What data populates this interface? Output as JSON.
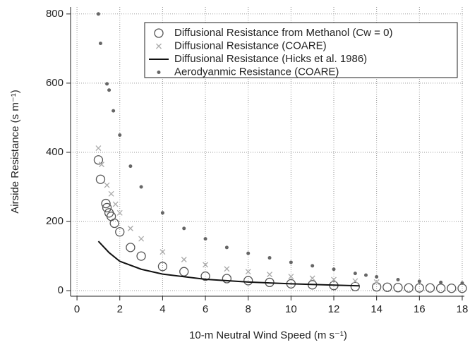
{
  "chart_data": {
    "type": "scatter",
    "xlabel": "10-m Neutral Wind Speed (m s⁻¹)",
    "ylabel": "Airside Resistance (s m⁻¹)",
    "xlim": [
      -0.3,
      18.1
    ],
    "ylim": [
      -16,
      820
    ],
    "xticks": [
      0,
      2,
      4,
      6,
      8,
      10,
      12,
      14,
      16,
      18
    ],
    "yticks": [
      0,
      200,
      400,
      600,
      800
    ],
    "grid": true,
    "legend": "upper right",
    "series": [
      {
        "name": "Diffusional Resistance from Methanol (Cw = 0)",
        "color": "#555555",
        "marker": "circle",
        "x": [
          1.0,
          1.1,
          1.35,
          1.4,
          1.5,
          1.6,
          1.75,
          2,
          2.5,
          3,
          4,
          5,
          6,
          7,
          8,
          9,
          10,
          11,
          12,
          13,
          14,
          14.5,
          15,
          15.5,
          16,
          16.5,
          17,
          17.5,
          18
        ],
        "values": [
          378,
          322,
          252,
          240,
          225,
          215,
          195,
          170,
          125,
          100,
          70,
          55,
          42,
          35,
          29,
          24,
          20,
          17,
          15,
          12,
          11,
          10,
          9,
          8,
          8,
          8,
          7,
          7,
          7
        ]
      },
      {
        "name": "Diffusional Resistance (COARE)",
        "color": "#aaaaaa",
        "marker": "x",
        "x": [
          1.0,
          1.15,
          1.4,
          1.6,
          1.8,
          2,
          2.5,
          3,
          4,
          5,
          6,
          7,
          8,
          9,
          10,
          11,
          12,
          13,
          14
        ],
        "values": [
          412,
          365,
          305,
          280,
          250,
          225,
          180,
          150,
          112,
          90,
          75,
          63,
          55,
          47,
          41,
          36,
          32,
          28,
          25
        ]
      },
      {
        "name": "Diffusional Resistance (Hicks et al. 1986)",
        "color": "#111111",
        "marker": "line",
        "x": [
          1.0,
          1.5,
          2,
          3,
          4,
          6,
          8,
          10,
          12,
          13.2
        ],
        "values": [
          143,
          110,
          85,
          62,
          48,
          33,
          25,
          20,
          16,
          14
        ]
      },
      {
        "name": "Aerodyanmic Resistance (COARE)",
        "color": "#666666",
        "marker": "dot",
        "x": [
          1.0,
          1.1,
          1.4,
          1.5,
          1.7,
          2,
          2.5,
          3,
          4,
          5,
          6,
          7,
          8,
          9,
          10,
          11,
          12,
          13,
          13.5,
          14,
          15,
          16,
          17,
          18
        ],
        "values": [
          800,
          715,
          598,
          580,
          520,
          450,
          360,
          300,
          225,
          180,
          150,
          125,
          108,
          95,
          82,
          72,
          62,
          50,
          45,
          40,
          32,
          27,
          24,
          22
        ]
      }
    ]
  }
}
